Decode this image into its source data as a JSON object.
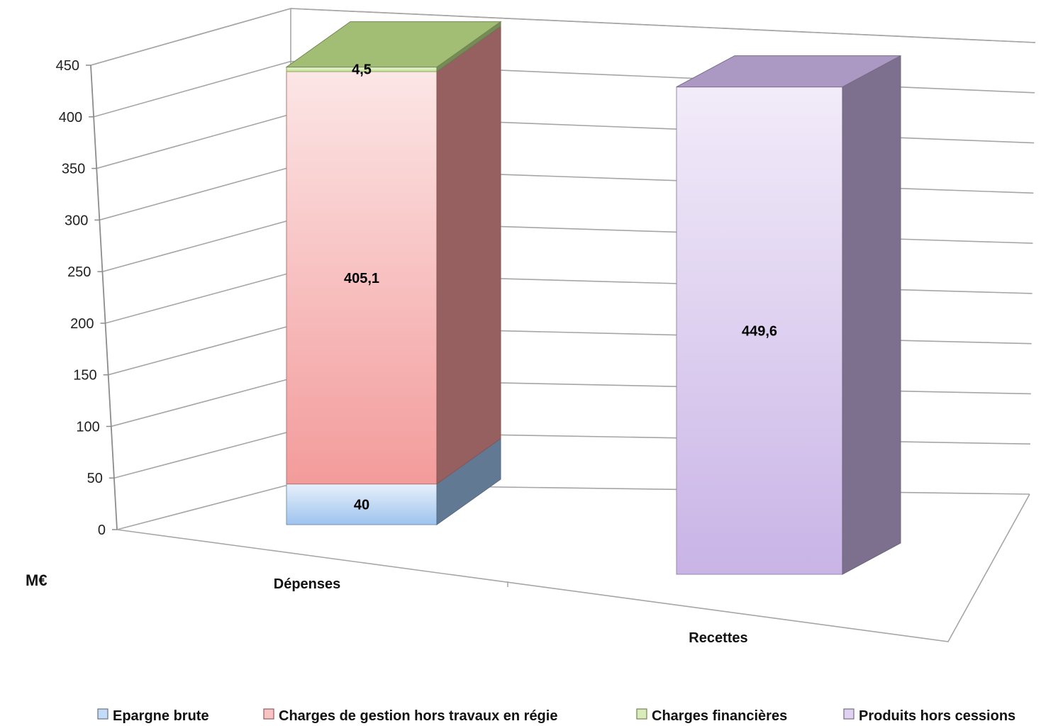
{
  "chart_data": {
    "type": "bar",
    "stacked": true,
    "three_d": true,
    "categories": [
      "Dépenses",
      "Recettes"
    ],
    "ylabel": "M€",
    "ylim": [
      0,
      450
    ],
    "yticks": [
      0,
      50,
      100,
      150,
      200,
      250,
      300,
      350,
      400,
      450
    ],
    "grid": true,
    "legend_position": "bottom",
    "series": [
      {
        "name": "Epargne brute",
        "values": [
          40,
          0
        ],
        "labels": [
          "40",
          ""
        ],
        "color": "#9ec3ee"
      },
      {
        "name": "Charges de gestion hors travaux en régie",
        "values": [
          405.1,
          0
        ],
        "labels": [
          "405,1",
          ""
        ],
        "color": "#f39b9b"
      },
      {
        "name": "Charges financières",
        "values": [
          4.5,
          0
        ],
        "labels": [
          "4,5",
          ""
        ],
        "color": "#bfe08a"
      },
      {
        "name": "Produits hors cessions",
        "values": [
          0,
          449.6
        ],
        "labels": [
          "",
          "449,6"
        ],
        "color": "#c9b4e6"
      }
    ]
  }
}
